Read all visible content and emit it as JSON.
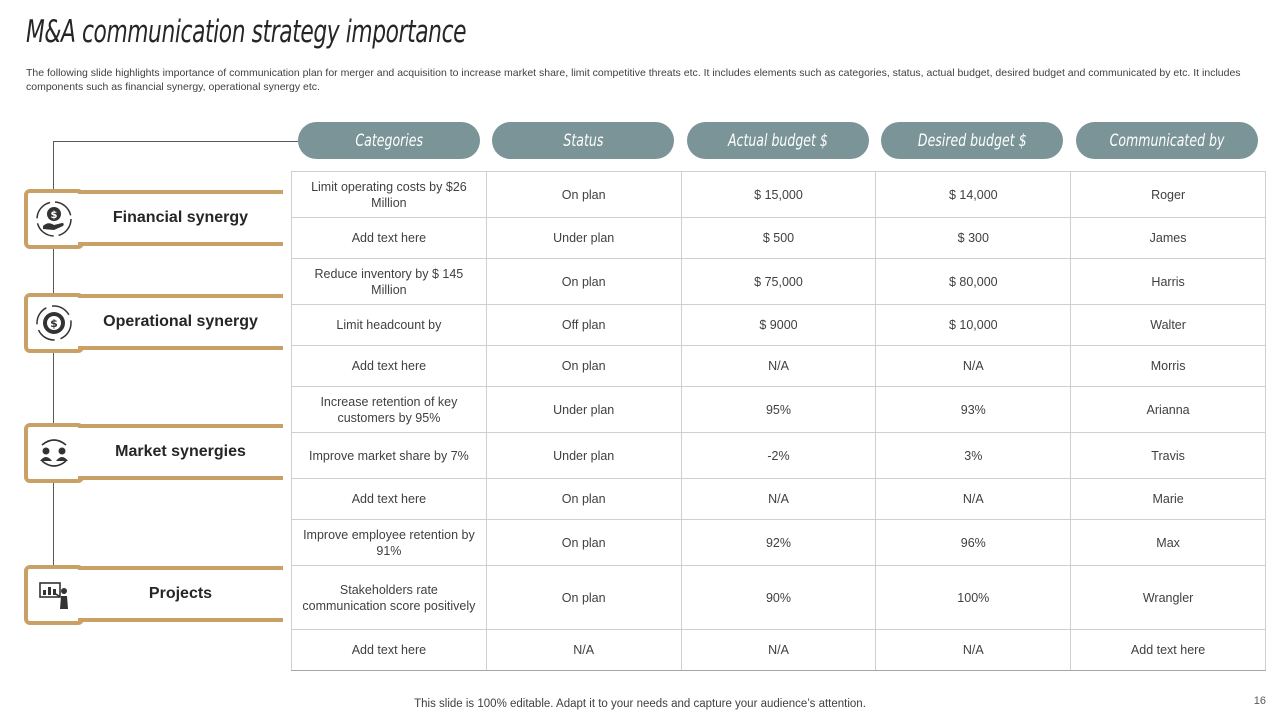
{
  "title": "M&A communication strategy importance",
  "subtitle": "The following slide highlights importance of communication plan for merger and acquisition to increase market share, limit competitive threats etc. It includes elements such as categories, status, actual budget, desired budget and communicated by etc. It includes components such as financial synergy, operational synergy etc.",
  "headers": [
    "Categories",
    "Status",
    "Actual budget $",
    "Desired budget $",
    "Communicated by"
  ],
  "rows": [
    [
      "Limit operating costs by $26 Million",
      "On plan",
      "$ 15,000",
      "$ 14,000",
      "Roger"
    ],
    [
      "Add text here",
      "Under  plan",
      "$ 500",
      "$ 300",
      "James"
    ],
    [
      "Reduce inventory  by $ 145 Million",
      "On plan",
      "$ 75,000",
      "$ 80,000",
      "Harris"
    ],
    [
      "Limit headcount  by",
      "Off plan",
      "$ 9000",
      "$ 10,000",
      "Walter"
    ],
    [
      "Add text here",
      "On plan",
      "N/A",
      "N/A",
      "Morris"
    ],
    [
      "Increase retention  of key customers by 95%",
      "Under  plan",
      "95%",
      "93%",
      "Arianna"
    ],
    [
      "Improve  market share  by 7%",
      "Under  plan",
      "-2%",
      "3%",
      "Travis"
    ],
    [
      "Add text here",
      "On plan",
      "N/A",
      "N/A",
      "Marie"
    ],
    [
      "Improve  employee retention by 91%",
      "On plan",
      "92%",
      "96%",
      "Max"
    ],
    [
      "Stakeholders rate communication score positively",
      "On plan",
      "90%",
      "100%",
      "Wrangler"
    ],
    [
      "Add text here",
      "N/A",
      "N/A",
      "N/A",
      "Add text here"
    ]
  ],
  "synergies": [
    {
      "label": "Financial synergy",
      "icon": "money-hand-icon"
    },
    {
      "label": "Operational synergy",
      "icon": "dollar-gear-icon"
    },
    {
      "label": "Market synergies",
      "icon": "people-exchange-icon"
    },
    {
      "label": "Projects",
      "icon": "presentation-icon"
    }
  ],
  "footer": "This slide is 100% editable. Adapt it to your needs and capture your audience’s attention.",
  "page_number": "16",
  "colors": {
    "header_pill": "#7b9497",
    "accent_gold": "#c9a066",
    "text": "#404040"
  }
}
